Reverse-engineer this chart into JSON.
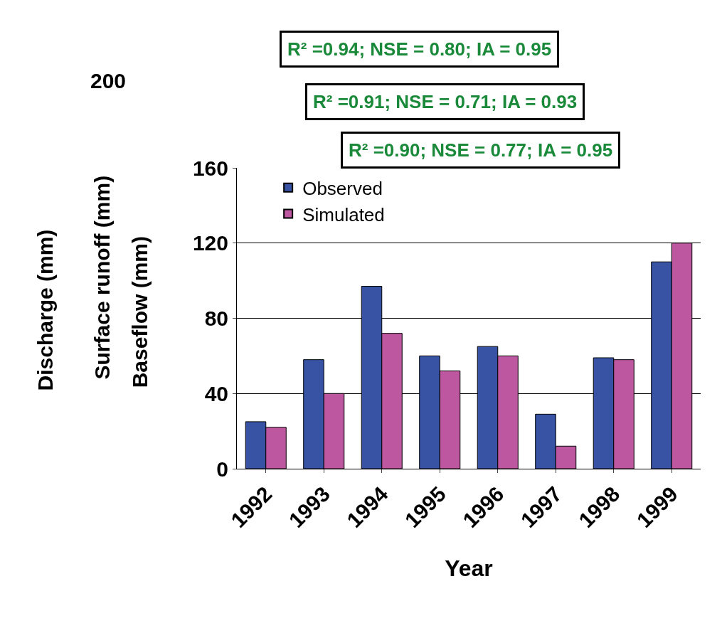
{
  "chart_data": {
    "type": "bar",
    "xlabel": "Year",
    "ylabel": "Baseflow (mm)",
    "categories": [
      "1992",
      "1993",
      "1994",
      "1995",
      "1996",
      "1997",
      "1998",
      "1999"
    ],
    "series": [
      {
        "name": "Observed",
        "color": "#3953a4",
        "values": [
          25,
          58,
          97,
          60,
          65,
          29,
          59,
          110
        ]
      },
      {
        "name": "Simulated",
        "color": "#bc57a0",
        "values": [
          22,
          40,
          72,
          52,
          60,
          12,
          58,
          120
        ]
      }
    ],
    "ylim": [
      0,
      160
    ],
    "yticks": [
      0,
      40,
      80,
      120,
      160
    ],
    "grid": "y",
    "legend": "top left",
    "annotations": [
      "R² =0.94; NSE = 0.80; IA = 0.95",
      "R² =0.91; NSE = 0.71; IA = 0.93",
      "R² =0.90; NSE = 0.77; IA = 0.95",
      "200",
      "Discharge (mm)",
      "Surface runoff (mm)"
    ]
  }
}
